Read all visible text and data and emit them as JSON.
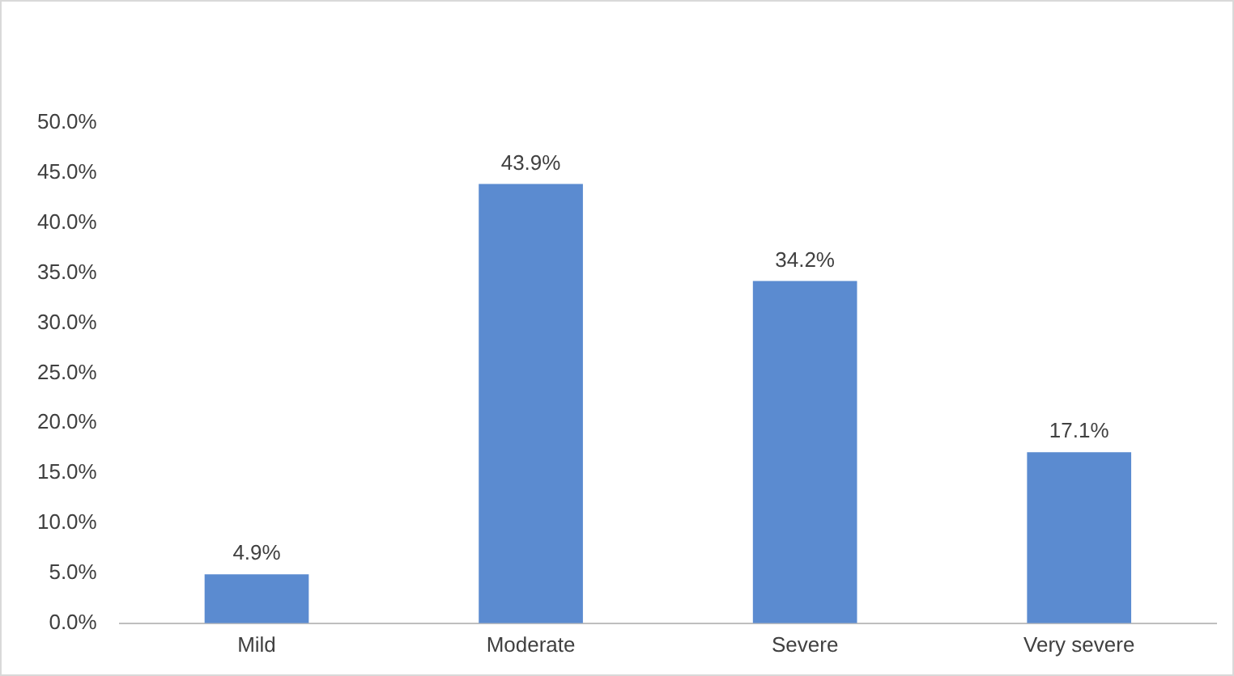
{
  "chart_data": {
    "type": "bar",
    "categories": [
      "Mild",
      "Moderate",
      "Severe",
      "Very severe"
    ],
    "values": [
      4.9,
      43.9,
      34.2,
      17.1
    ],
    "color": "#5b8bd0",
    "value_labels": [
      "4.9%",
      "43.9%",
      "34.2%",
      "17.1%"
    ],
    "ylim": [
      0,
      50
    ],
    "yticks": [
      {
        "value": 0,
        "label": "0.0%"
      },
      {
        "value": 5,
        "label": "5.0%"
      },
      {
        "value": 10,
        "label": "10.0%"
      },
      {
        "value": 15,
        "label": "15.0%"
      },
      {
        "value": 20,
        "label": "20.0%"
      },
      {
        "value": 25,
        "label": "25.0%"
      },
      {
        "value": 30,
        "label": "30.0%"
      },
      {
        "value": 35,
        "label": "35.0%"
      },
      {
        "value": 40,
        "label": "40.0%"
      },
      {
        "value": 45,
        "label": "45.0%"
      },
      {
        "value": 50,
        "label": "50.0%"
      }
    ],
    "grid": false,
    "legend": false
  }
}
